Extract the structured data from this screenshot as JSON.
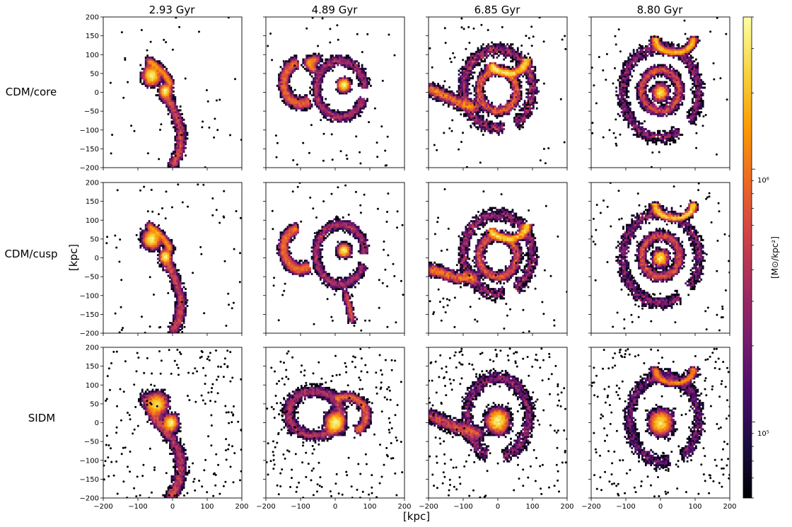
{
  "chart_data": {
    "type": "heatmap",
    "description_rows": [
      "CDM/core",
      "CDM/cusp",
      "SIDM"
    ],
    "columns": [
      "2.93 Gyr",
      "4.89 Gyr",
      "6.85 Gyr",
      "8.80 Gyr"
    ],
    "xlabel": "[kpc]",
    "ylabel": "[kpc]",
    "xlim": [
      -200,
      200
    ],
    "ylim": [
      -200,
      200
    ],
    "xticks": [
      "−200",
      "−100",
      "0",
      "100",
      "200"
    ],
    "yticks": [
      "200",
      "150",
      "100",
      "50",
      "0",
      "−50",
      "−100",
      "−150",
      "−200"
    ],
    "colorbar": {
      "label": "[M⊙/kpc²]",
      "scale": "log",
      "range": [
        50000,
        4000000
      ],
      "ticks": [
        "10⁵",
        "10⁶"
      ],
      "colormap": "inferno",
      "colors": [
        "#000004",
        "#1b0c41",
        "#4a0c6b",
        "#781c6d",
        "#a52c60",
        "#cf4446",
        "#ed6925",
        "#fb9b06",
        "#f7d13d",
        "#fcffa4"
      ]
    },
    "panels": [
      [
        {
          "components": [
            {
              "type": "blob",
              "x": -60,
              "y": 45,
              "r": 22,
              "w": 1.0
            },
            {
              "type": "stream",
              "pts": [
                [
                  -70,
                  85
                ],
                [
                  -45,
                  70
                ],
                [
                  -20,
                  45
                ],
                [
                  -5,
                  20
                ]
              ],
              "r": 15,
              "w": 0.5
            },
            {
              "type": "stream",
              "pts": [
                [
                  -30,
                  0
                ],
                [
                  -10,
                  -20
                ],
                [
                  10,
                  -60
                ],
                [
                  25,
                  -110
                ],
                [
                  20,
                  -160
                ],
                [
                  0,
                  -195
                ]
              ],
              "r": 22,
              "w": 0.65
            },
            {
              "type": "blob",
              "x": -20,
              "y": 5,
              "r": 14,
              "w": 0.45
            }
          ],
          "halo": 0.25
        },
        {
          "components": [
            {
              "type": "arc",
              "cx": -100,
              "cy": 25,
              "rx": 50,
              "ry": 55,
              "a0": 100,
              "a1": 300,
              "t": 20,
              "w": 0.75
            },
            {
              "type": "arc",
              "cx": 15,
              "cy": 10,
              "rx": 70,
              "ry": 75,
              "a0": 0,
              "a1": 340,
              "t": 18,
              "w": 0.6
            },
            {
              "type": "blob",
              "x": 25,
              "y": 20,
              "r": 15,
              "w": 0.45
            },
            {
              "type": "stream",
              "pts": [
                [
                  -60,
                  60
                ],
                [
                  -80,
                  80
                ],
                [
                  -50,
                  90
                ]
              ],
              "r": 18,
              "w": 0.3
            }
          ],
          "halo": 0.3
        },
        {
          "components": [
            {
              "type": "arc",
              "cx": 0,
              "cy": 10,
              "rx": 100,
              "ry": 105,
              "a0": -60,
              "a1": 280,
              "t": 22,
              "w": 0.5
            },
            {
              "type": "arc",
              "cx": 0,
              "cy": 5,
              "rx": 55,
              "ry": 55,
              "a0": 0,
              "a1": 360,
              "t": 18,
              "w": 0.55
            },
            {
              "type": "stream",
              "pts": [
                [
                  -200,
                  10
                ],
                [
                  -160,
                  -5
                ],
                [
                  -110,
                  -30
                ],
                [
                  -60,
                  -40
                ]
              ],
              "r": 24,
              "w": 0.35
            },
            {
              "type": "arc",
              "cx": 30,
              "cy": 90,
              "rx": 55,
              "ry": 40,
              "a0": 200,
              "a1": 360,
              "t": 18,
              "w": 0.45
            }
          ],
          "halo": 0.3
        },
        {
          "components": [
            {
              "type": "arc",
              "cx": 0,
              "cy": 0,
              "rx": 110,
              "ry": 120,
              "a0": -40,
              "a1": 300,
              "t": 22,
              "w": 0.5
            },
            {
              "type": "arc",
              "cx": 0,
              "cy": 5,
              "rx": 55,
              "ry": 55,
              "a0": 0,
              "a1": 360,
              "t": 18,
              "w": 0.55
            },
            {
              "type": "arc",
              "cx": 40,
              "cy": 140,
              "rx": 55,
              "ry": 35,
              "a0": 170,
              "a1": 370,
              "t": 16,
              "w": 0.55
            },
            {
              "type": "blob",
              "x": 0,
              "y": 0,
              "r": 20,
              "w": 0.3
            }
          ],
          "halo": 0.25
        }
      ],
      [
        {
          "components": [
            {
              "type": "blob",
              "x": -60,
              "y": 50,
              "r": 22,
              "w": 1.0
            },
            {
              "type": "stream",
              "pts": [
                [
                  -70,
                  85
                ],
                [
                  -45,
                  70
                ],
                [
                  -20,
                  45
                ],
                [
                  -5,
                  20
                ]
              ],
              "r": 15,
              "w": 0.5
            },
            {
              "type": "stream",
              "pts": [
                [
                  -30,
                  0
                ],
                [
                  -10,
                  -20
                ],
                [
                  10,
                  -60
                ],
                [
                  25,
                  -110
                ],
                [
                  20,
                  -160
                ],
                [
                  0,
                  -195
                ]
              ],
              "r": 22,
              "w": 0.7
            },
            {
              "type": "blob",
              "x": -20,
              "y": 5,
              "r": 14,
              "w": 0.45
            }
          ],
          "halo": 0.35
        },
        {
          "components": [
            {
              "type": "arc",
              "cx": -100,
              "cy": 25,
              "rx": 50,
              "ry": 55,
              "a0": 100,
              "a1": 300,
              "t": 20,
              "w": 0.8
            },
            {
              "type": "arc",
              "cx": 15,
              "cy": 10,
              "rx": 70,
              "ry": 80,
              "a0": 0,
              "a1": 340,
              "t": 18,
              "w": 0.6
            },
            {
              "type": "blob",
              "x": 25,
              "y": 20,
              "r": 15,
              "w": 0.45
            },
            {
              "type": "stream",
              "pts": [
                [
                  30,
                  -90
                ],
                [
                  40,
                  -130
                ],
                [
                  50,
                  -170
                ]
              ],
              "r": 14,
              "w": 0.15
            }
          ],
          "halo": 0.35
        },
        {
          "components": [
            {
              "type": "arc",
              "cx": 0,
              "cy": 10,
              "rx": 100,
              "ry": 105,
              "a0": -60,
              "a1": 280,
              "t": 22,
              "w": 0.5
            },
            {
              "type": "arc",
              "cx": 0,
              "cy": 5,
              "rx": 55,
              "ry": 55,
              "a0": 0,
              "a1": 360,
              "t": 18,
              "w": 0.55
            },
            {
              "type": "stream",
              "pts": [
                [
                  -200,
                  -30
                ],
                [
                  -160,
                  -40
                ],
                [
                  -110,
                  -55
                ],
                [
                  -60,
                  -50
                ]
              ],
              "r": 24,
              "w": 0.35
            },
            {
              "type": "arc",
              "cx": 30,
              "cy": 90,
              "rx": 55,
              "ry": 40,
              "a0": 200,
              "a1": 360,
              "t": 18,
              "w": 0.45
            }
          ],
          "halo": 0.35
        },
        {
          "components": [
            {
              "type": "arc",
              "cx": 0,
              "cy": 0,
              "rx": 110,
              "ry": 120,
              "a0": -40,
              "a1": 300,
              "t": 22,
              "w": 0.5
            },
            {
              "type": "arc",
              "cx": 0,
              "cy": 5,
              "rx": 55,
              "ry": 55,
              "a0": 0,
              "a1": 360,
              "t": 18,
              "w": 0.55
            },
            {
              "type": "arc",
              "cx": 40,
              "cy": 140,
              "rx": 55,
              "ry": 35,
              "a0": 170,
              "a1": 370,
              "t": 16,
              "w": 0.6
            },
            {
              "type": "blob",
              "x": 0,
              "y": 0,
              "r": 20,
              "w": 0.3
            }
          ],
          "halo": 0.4
        }
      ],
      [
        {
          "components": [
            {
              "type": "blob",
              "x": -45,
              "y": 50,
              "r": 25,
              "w": 0.85
            },
            {
              "type": "stream",
              "pts": [
                [
                  -80,
                  70
                ],
                [
                  -60,
                  30
                ],
                [
                  -40,
                  0
                ],
                [
                  -10,
                  -30
                ],
                [
                  20,
                  -80
                ],
                [
                  25,
                  -130
                ],
                [
                  10,
                  -175
                ],
                [
                  -10,
                  -200
                ]
              ],
              "r": 25,
              "w": 0.7
            },
            {
              "type": "blob",
              "x": -5,
              "y": 0,
              "r": 18,
              "w": 0.55
            }
          ],
          "halo": 1.0
        },
        {
          "components": [
            {
              "type": "arc",
              "cx": -60,
              "cy": 25,
              "rx": 75,
              "ry": 60,
              "a0": 0,
              "a1": 360,
              "t": 24,
              "w": 0.6
            },
            {
              "type": "blob",
              "x": 0,
              "y": 0,
              "r": 24,
              "w": 0.8
            },
            {
              "type": "arc",
              "cx": 30,
              "cy": 20,
              "rx": 60,
              "ry": 50,
              "a0": -60,
              "a1": 120,
              "t": 18,
              "w": 0.45
            }
          ],
          "halo": 1.0
        },
        {
          "components": [
            {
              "type": "blob",
              "x": 0,
              "y": 5,
              "r": 28,
              "w": 0.85
            },
            {
              "type": "arc",
              "cx": 0,
              "cy": 15,
              "rx": 90,
              "ry": 105,
              "a0": -80,
              "a1": 250,
              "t": 24,
              "w": 0.45
            },
            {
              "type": "stream",
              "pts": [
                [
                  -200,
                  20
                ],
                [
                  -150,
                  0
                ],
                [
                  -100,
                  -20
                ],
                [
                  -50,
                  -30
                ]
              ],
              "r": 26,
              "w": 0.35
            }
          ],
          "halo": 1.0
        },
        {
          "components": [
            {
              "type": "blob",
              "x": 0,
              "y": 0,
              "r": 28,
              "w": 0.9
            },
            {
              "type": "arc",
              "cx": 10,
              "cy": 10,
              "rx": 100,
              "ry": 115,
              "a0": -60,
              "a1": 280,
              "t": 24,
              "w": 0.45
            },
            {
              "type": "arc",
              "cx": 40,
              "cy": 140,
              "rx": 55,
              "ry": 35,
              "a0": 170,
              "a1": 370,
              "t": 16,
              "w": 0.45
            }
          ],
          "halo": 1.0
        }
      ]
    ]
  }
}
